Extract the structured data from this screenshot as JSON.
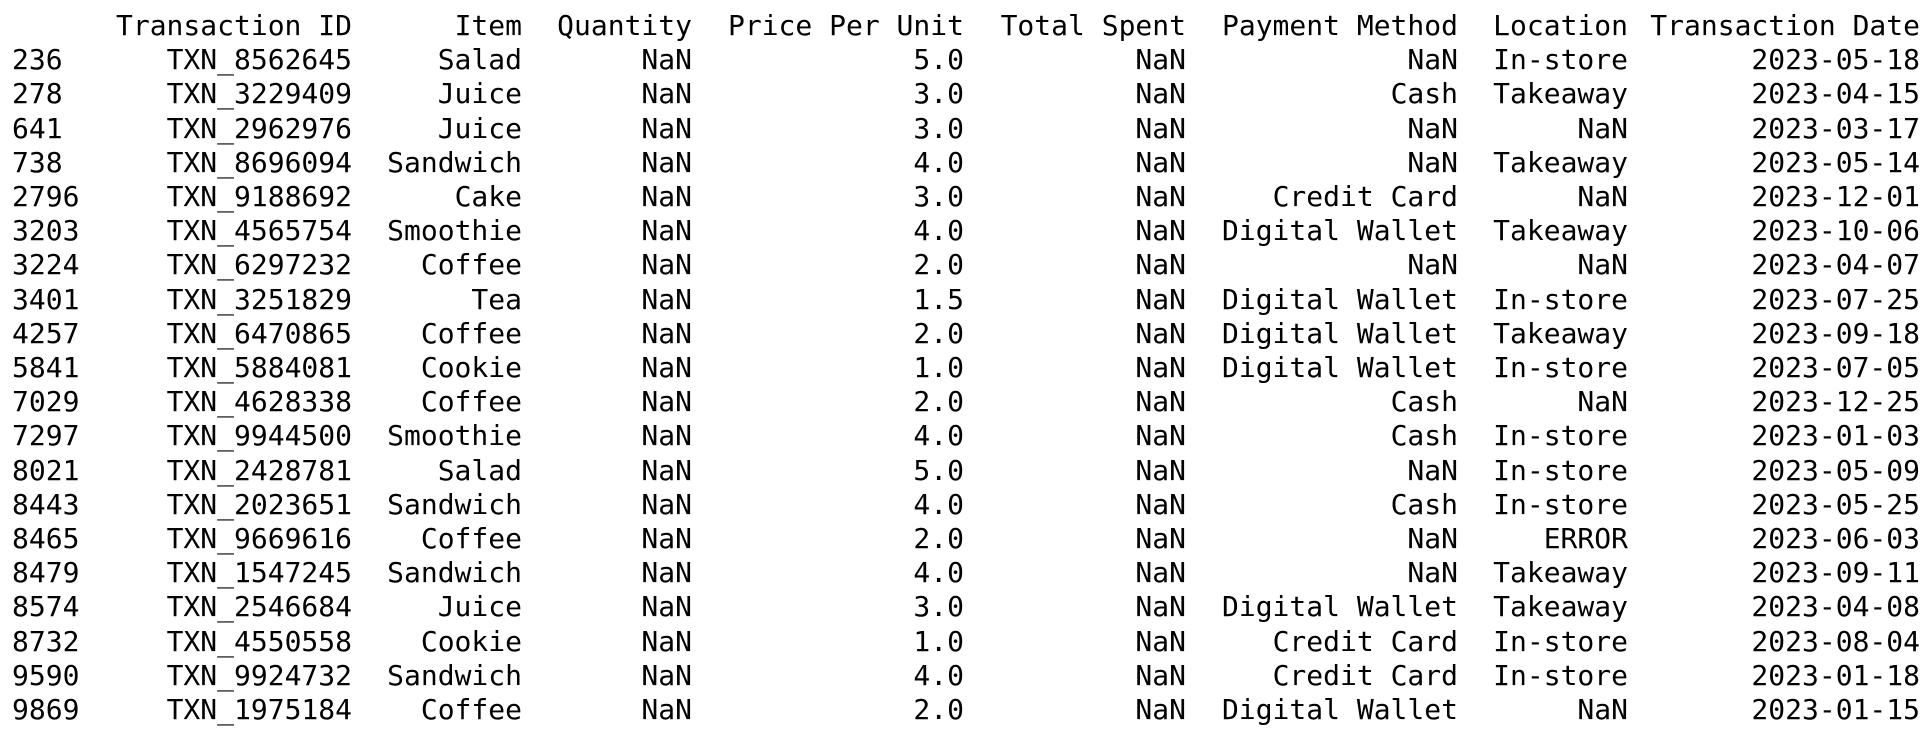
{
  "dataframe": {
    "columns": [
      "Transaction ID",
      "Item",
      "Quantity",
      "Price Per Unit",
      "Total Spent",
      "Payment Method",
      "Location",
      "Transaction Date"
    ],
    "rows": [
      {
        "index": "236",
        "cells": [
          "TXN_8562645",
          "Salad",
          "NaN",
          "5.0",
          "NaN",
          "NaN",
          "In-store",
          "2023-05-18"
        ]
      },
      {
        "index": "278",
        "cells": [
          "TXN_3229409",
          "Juice",
          "NaN",
          "3.0",
          "NaN",
          "Cash",
          "Takeaway",
          "2023-04-15"
        ]
      },
      {
        "index": "641",
        "cells": [
          "TXN_2962976",
          "Juice",
          "NaN",
          "3.0",
          "NaN",
          "NaN",
          "NaN",
          "2023-03-17"
        ]
      },
      {
        "index": "738",
        "cells": [
          "TXN_8696094",
          "Sandwich",
          "NaN",
          "4.0",
          "NaN",
          "NaN",
          "Takeaway",
          "2023-05-14"
        ]
      },
      {
        "index": "2796",
        "cells": [
          "TXN_9188692",
          "Cake",
          "NaN",
          "3.0",
          "NaN",
          "Credit Card",
          "NaN",
          "2023-12-01"
        ]
      },
      {
        "index": "3203",
        "cells": [
          "TXN_4565754",
          "Smoothie",
          "NaN",
          "4.0",
          "NaN",
          "Digital Wallet",
          "Takeaway",
          "2023-10-06"
        ]
      },
      {
        "index": "3224",
        "cells": [
          "TXN_6297232",
          "Coffee",
          "NaN",
          "2.0",
          "NaN",
          "NaN",
          "NaN",
          "2023-04-07"
        ]
      },
      {
        "index": "3401",
        "cells": [
          "TXN_3251829",
          "Tea",
          "NaN",
          "1.5",
          "NaN",
          "Digital Wallet",
          "In-store",
          "2023-07-25"
        ]
      },
      {
        "index": "4257",
        "cells": [
          "TXN_6470865",
          "Coffee",
          "NaN",
          "2.0",
          "NaN",
          "Digital Wallet",
          "Takeaway",
          "2023-09-18"
        ]
      },
      {
        "index": "5841",
        "cells": [
          "TXN_5884081",
          "Cookie",
          "NaN",
          "1.0",
          "NaN",
          "Digital Wallet",
          "In-store",
          "2023-07-05"
        ]
      },
      {
        "index": "7029",
        "cells": [
          "TXN_4628338",
          "Coffee",
          "NaN",
          "2.0",
          "NaN",
          "Cash",
          "NaN",
          "2023-12-25"
        ]
      },
      {
        "index": "7297",
        "cells": [
          "TXN_9944500",
          "Smoothie",
          "NaN",
          "4.0",
          "NaN",
          "Cash",
          "In-store",
          "2023-01-03"
        ]
      },
      {
        "index": "8021",
        "cells": [
          "TXN_2428781",
          "Salad",
          "NaN",
          "5.0",
          "NaN",
          "NaN",
          "In-store",
          "2023-05-09"
        ]
      },
      {
        "index": "8443",
        "cells": [
          "TXN_2023651",
          "Sandwich",
          "NaN",
          "4.0",
          "NaN",
          "Cash",
          "In-store",
          "2023-05-25"
        ]
      },
      {
        "index": "8465",
        "cells": [
          "TXN_9669616",
          "Coffee",
          "NaN",
          "2.0",
          "NaN",
          "NaN",
          "ERROR",
          "2023-06-03"
        ]
      },
      {
        "index": "8479",
        "cells": [
          "TXN_1547245",
          "Sandwich",
          "NaN",
          "4.0",
          "NaN",
          "NaN",
          "Takeaway",
          "2023-09-11"
        ]
      },
      {
        "index": "8574",
        "cells": [
          "TXN_2546684",
          "Juice",
          "NaN",
          "3.0",
          "NaN",
          "Digital Wallet",
          "Takeaway",
          "2023-04-08"
        ]
      },
      {
        "index": "8732",
        "cells": [
          "TXN_4550558",
          "Cookie",
          "NaN",
          "1.0",
          "NaN",
          "Credit Card",
          "In-store",
          "2023-08-04"
        ]
      },
      {
        "index": "9590",
        "cells": [
          "TXN_9924732",
          "Sandwich",
          "NaN",
          "4.0",
          "NaN",
          "Credit Card",
          "In-store",
          "2023-01-18"
        ]
      },
      {
        "index": "9869",
        "cells": [
          "TXN_1975184",
          "Coffee",
          "NaN",
          "2.0",
          "NaN",
          "Digital Wallet",
          "NaN",
          "2023-01-15"
        ]
      }
    ]
  }
}
